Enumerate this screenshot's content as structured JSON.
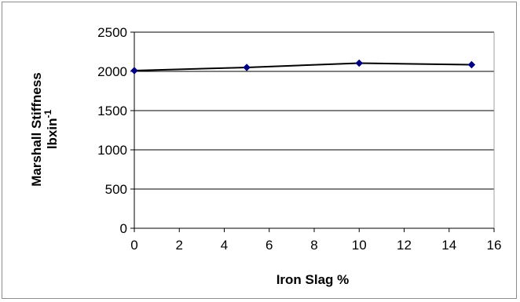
{
  "chart_data": {
    "type": "scatter",
    "title": "",
    "xlabel": "Iron Slag %",
    "ylabel_line1": "Marshall Stiffness",
    "ylabel_line2_base": "lbxin",
    "ylabel_line2_sup": "-1",
    "xlim": [
      0,
      16
    ],
    "ylim": [
      0,
      2500
    ],
    "x_ticks": [
      "0",
      "2",
      "4",
      "6",
      "8",
      "10",
      "12",
      "14",
      "16"
    ],
    "y_ticks": [
      "0",
      "500",
      "1000",
      "1500",
      "2000",
      "2500"
    ],
    "grid": "horizontal",
    "legend": "none",
    "series": [
      {
        "x": [
          0,
          5,
          10,
          15
        ],
        "y": [
          2010,
          2050,
          2105,
          2085
        ],
        "marker": "diamond",
        "color": "#000080",
        "line_color": "#000000"
      }
    ]
  }
}
